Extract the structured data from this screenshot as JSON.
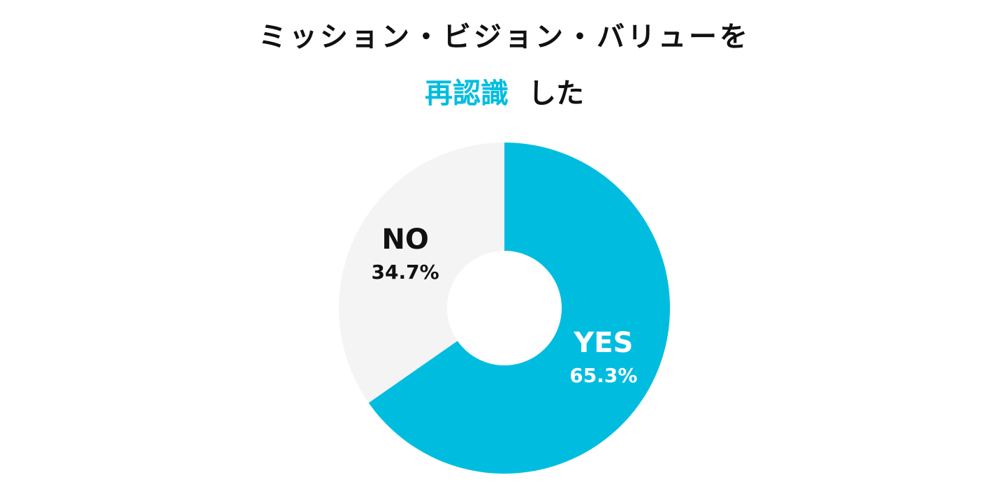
{
  "chart_data": {
    "type": "donut",
    "title": "ミッション・ビジョン・バリューを",
    "title_highlight": "再認識",
    "title_rest": "した",
    "categories": [
      "YES",
      "NO"
    ],
    "values": [
      65.3,
      34.7
    ],
    "value_labels": [
      "65.3%",
      "34.7%"
    ],
    "colors": [
      "#00bde0",
      "#f4f4f4"
    ],
    "label_colors": [
      "#ffffff",
      "#111111"
    ],
    "highlight_color": "#00bde0"
  }
}
